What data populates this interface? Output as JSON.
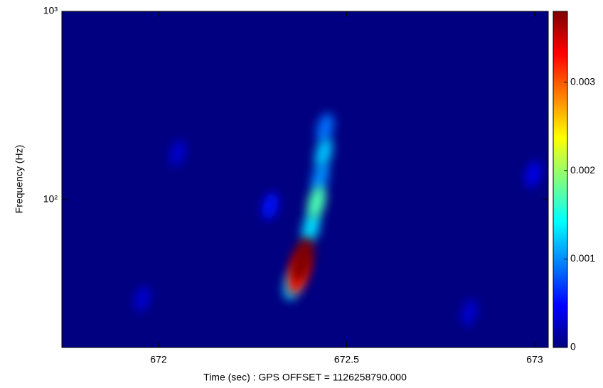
{
  "chart_data": {
    "type": "heatmap",
    "xlabel": "Time (sec) : GPS OFFSET = 1126258790.000",
    "ylabel": "Frequency (Hz)",
    "x": [
      671.957,
      672.826,
      672.051,
      672.996,
      672.297,
      672.443,
      672.43,
      672.439,
      672.357,
      672.405,
      672.42,
      672.372,
      672.382
    ],
    "y": [
      29.8,
      25.1,
      177,
      136,
      92.5,
      240,
      131,
      177,
      35.6,
      71,
      96.6,
      40.5,
      48
    ],
    "values": [
      0.0003,
      0.0003,
      0.0003,
      0.0004,
      0.0005,
      0.0009,
      0.001,
      0.0012,
      0.0013,
      0.0013,
      0.0017,
      0.0033,
      0.0038
    ],
    "xlim": [
      671.743,
      673.036
    ],
    "xticks": [
      672,
      672.5,
      673
    ],
    "ylim": [
      16.4,
      1000
    ],
    "yscale": "log",
    "yticks": [
      {
        "value": 100,
        "label": "10²"
      },
      {
        "value": 1000,
        "label": "10³"
      }
    ],
    "colormap": "jet",
    "clim": [
      0,
      0.0038
    ],
    "cticks": [
      0,
      0.001,
      0.002,
      0.003
    ]
  }
}
